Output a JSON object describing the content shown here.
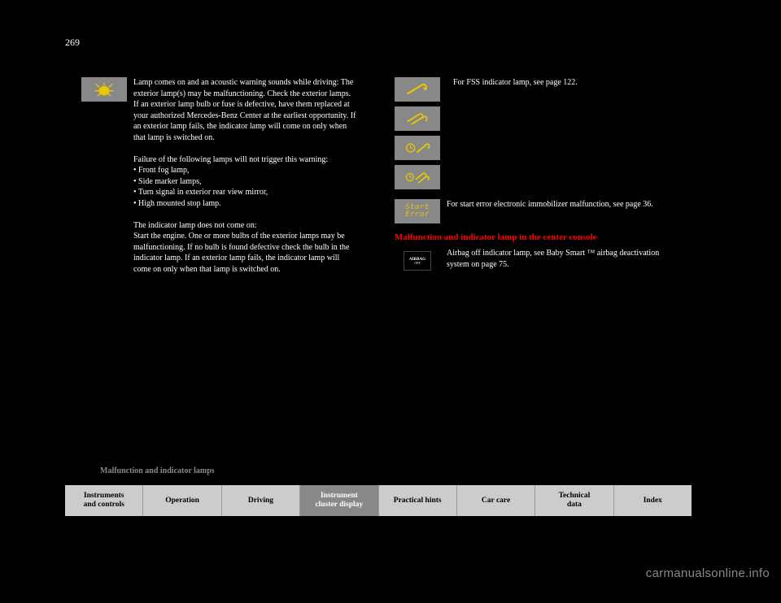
{
  "page_number": "269",
  "footer_title": "Malfunction and indicator lamps",
  "left": {
    "beetle_text": "Lamp comes on and an acoustic warning sounds while driving: The exterior lamp(s) may be malfunctioning. Check the exterior lamps. If an exterior lamp bulb or fuse is defective, have them replaced at your authorized Mercedes-Benz Center at the earliest opportunity. If an exterior lamp fails, the indicator lamp will come on only when that lamp is switched on.\n\nFailure of the following lamps will not trigger this warning:\n• Front fog lamp,\n• Side marker lamps,\n• Turn signal in exterior rear view mirror,\n• High mounted stop lamp.\n\nThe indicator lamp does not come on:\nStart the engine. One or more bulbs of the exterior lamps may be malfunctioning. If no bulb is found defective check the bulb in the indicator lamp. If an exterior lamp fails, the indicator lamp will come on only when that lamp is switched on.",
    "beetle_icon_color": "#e8c800"
  },
  "right": {
    "fss_text": "For FSS indicator lamp, see page 122.",
    "start_error_text": "For start error electronic immobilizer malfunction, see page 36.",
    "start_error_glyph": "Start Error",
    "section_heading": "Malfunction and indicator lamp in the center console",
    "airbag_label_top": "AIRBAG",
    "airbag_label_bottom": "OFF",
    "airbag_text": "Airbag off indicator lamp, see Baby Smart ™ airbag deactivation system on page 75.",
    "icon_color": "#e8c800"
  },
  "nav": {
    "items": [
      {
        "label": "Instruments\nand controls",
        "shade": "light"
      },
      {
        "label": "Operation",
        "shade": "light"
      },
      {
        "label": "Driving",
        "shade": "light"
      },
      {
        "label": "Instrument\ncluster display",
        "shade": "dark"
      },
      {
        "label": "Practical hints",
        "shade": "light"
      },
      {
        "label": "Car care",
        "shade": "light"
      },
      {
        "label": "Technical\ndata",
        "shade": "light"
      },
      {
        "label": "Index",
        "shade": "light"
      }
    ]
  },
  "watermark": "carmanualsonline.info"
}
